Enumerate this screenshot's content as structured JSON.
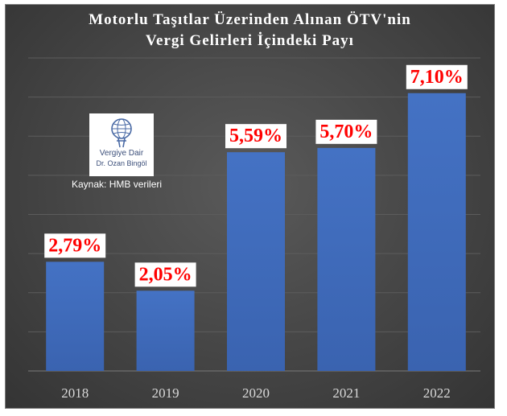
{
  "chart_data": {
    "type": "bar",
    "title_line1": "Motorlu Taşıtlar Üzerinden Alınan ÖTV'nin",
    "title_line2": "Vergi Gelirleri İçindeki Payı",
    "categories": [
      "2018",
      "2019",
      "2020",
      "2021",
      "2022"
    ],
    "values": [
      2.79,
      2.05,
      5.59,
      5.7,
      7.1
    ],
    "data_labels": [
      "2,79%",
      "2,05%",
      "5,59%",
      "5,70%",
      "7,10%"
    ],
    "ylim": [
      0,
      8
    ],
    "grid": true,
    "xlabel": "",
    "ylabel": ""
  },
  "logo": {
    "line1": "Vergiye Dair",
    "line2": "Dr. Ozan Bingöl"
  },
  "source_note": "Kaynak: HMB verileri",
  "colors": {
    "bar": "#4472c4",
    "label_text": "#ff0000",
    "label_box": "#ffffff",
    "background": "#454545",
    "title": "#ffffff"
  }
}
